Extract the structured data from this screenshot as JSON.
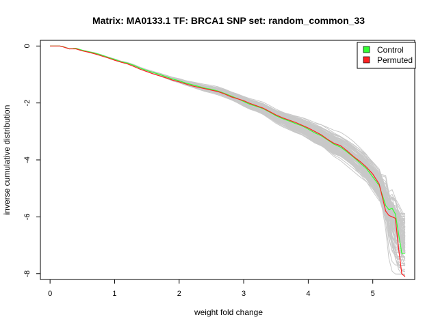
{
  "chart_data": {
    "type": "line",
    "title": "Matrix: MA0133.1 TF: BRCA1 SNP set: random_common_33",
    "xlabel": "weight fold change",
    "ylabel": "inverse cumulative distribution",
    "xlim": [
      -0.15,
      5.65
    ],
    "ylim": [
      -8.2,
      0.2
    ],
    "xticks": [
      0,
      1,
      2,
      3,
      4,
      5
    ],
    "yticks": [
      0,
      -2,
      -4,
      -6,
      -8
    ],
    "xtick_labels": [
      "0",
      "1",
      "2",
      "3",
      "4",
      "5"
    ],
    "ytick_labels": [
      "0",
      "-2",
      "-4",
      "-6",
      "-8"
    ],
    "grid": false,
    "legend_position": "top-right",
    "legend": [
      {
        "label": "Control",
        "color": "#33ff33"
      },
      {
        "label": "Permuted",
        "color": "#ff2222"
      }
    ],
    "background_series": {
      "color": "#c8c8c8",
      "count": 100,
      "description_band": "bundle of gray permutation curves around the main curves"
    },
    "series": [
      {
        "name": "Control",
        "color": "#33ff33",
        "x": [
          0.0,
          0.15,
          0.2,
          0.3,
          0.4,
          0.5,
          0.6,
          0.7,
          0.8,
          0.9,
          1.0,
          1.1,
          1.2,
          1.3,
          1.4,
          1.5,
          1.6,
          1.7,
          1.8,
          1.9,
          2.0,
          2.1,
          2.2,
          2.3,
          2.4,
          2.5,
          2.6,
          2.7,
          2.8,
          2.9,
          3.0,
          3.1,
          3.2,
          3.3,
          3.4,
          3.5,
          3.6,
          3.7,
          3.8,
          3.9,
          4.0,
          4.1,
          4.2,
          4.3,
          4.4,
          4.5,
          4.6,
          4.7,
          4.8,
          4.9,
          5.0,
          5.1,
          5.2,
          5.25,
          5.3,
          5.35,
          5.4,
          5.45,
          5.5
        ],
        "y": [
          0.0,
          0.0,
          -0.02,
          -0.1,
          -0.08,
          -0.15,
          -0.2,
          -0.25,
          -0.32,
          -0.4,
          -0.47,
          -0.55,
          -0.6,
          -0.68,
          -0.78,
          -0.86,
          -0.93,
          -1.0,
          -1.08,
          -1.16,
          -1.22,
          -1.3,
          -1.36,
          -1.42,
          -1.48,
          -1.52,
          -1.58,
          -1.66,
          -1.75,
          -1.84,
          -1.95,
          -2.05,
          -2.12,
          -2.2,
          -2.32,
          -2.45,
          -2.55,
          -2.63,
          -2.72,
          -2.8,
          -2.92,
          -3.05,
          -3.15,
          -3.3,
          -3.45,
          -3.55,
          -3.72,
          -3.9,
          -4.1,
          -4.3,
          -4.6,
          -4.9,
          -5.6,
          -5.75,
          -5.7,
          -5.9,
          -6.6,
          -7.28,
          -7.28
        ]
      },
      {
        "name": "Permuted",
        "color": "#ff2222",
        "x": [
          0.0,
          0.15,
          0.2,
          0.3,
          0.4,
          0.5,
          0.6,
          0.7,
          0.8,
          0.9,
          1.0,
          1.1,
          1.2,
          1.3,
          1.4,
          1.5,
          1.6,
          1.7,
          1.8,
          1.9,
          2.0,
          2.1,
          2.2,
          2.3,
          2.4,
          2.5,
          2.6,
          2.7,
          2.8,
          2.9,
          3.0,
          3.1,
          3.2,
          3.3,
          3.4,
          3.5,
          3.6,
          3.7,
          3.8,
          3.9,
          4.0,
          4.1,
          4.2,
          4.3,
          4.4,
          4.5,
          4.6,
          4.7,
          4.8,
          4.9,
          5.0,
          5.1,
          5.2,
          5.25,
          5.3,
          5.35,
          5.4,
          5.45,
          5.5
        ],
        "y": [
          0.0,
          0.0,
          -0.03,
          -0.1,
          -0.1,
          -0.17,
          -0.22,
          -0.28,
          -0.35,
          -0.42,
          -0.5,
          -0.57,
          -0.63,
          -0.72,
          -0.82,
          -0.9,
          -0.98,
          -1.05,
          -1.12,
          -1.2,
          -1.26,
          -1.33,
          -1.4,
          -1.45,
          -1.5,
          -1.55,
          -1.6,
          -1.68,
          -1.78,
          -1.85,
          -1.92,
          -2.02,
          -2.1,
          -2.18,
          -2.3,
          -2.42,
          -2.52,
          -2.6,
          -2.68,
          -2.78,
          -2.88,
          -3.0,
          -3.12,
          -3.28,
          -3.42,
          -3.5,
          -3.68,
          -3.88,
          -4.05,
          -4.25,
          -4.5,
          -4.85,
          -5.8,
          -5.95,
          -6.0,
          -6.05,
          -7.1,
          -8.0,
          -8.1
        ]
      }
    ]
  }
}
